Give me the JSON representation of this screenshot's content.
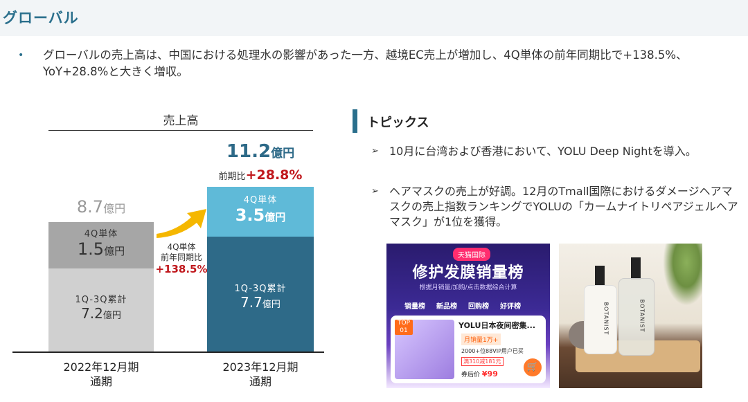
{
  "header": {
    "title": "グローバル"
  },
  "bullet": {
    "dot": "•",
    "text": "グローバルの売上高は、中国における処理水の影響があった一方、越境EC売上が増加し、4Q単体の前年同期比で+138.5%、YoY+28.8%と大きく増収。"
  },
  "chart": {
    "heading": "売上高",
    "fy2022": {
      "total_value": "8.7",
      "total_unit": "億円",
      "q4_label": "4Q単体",
      "q4_value": "1.5",
      "q4_unit": "億円",
      "q13_label": "1Q-3Q累計",
      "q13_value": "7.2",
      "q13_unit": "億円",
      "xlabel_line1": "2022年12月期",
      "xlabel_line2": "通期"
    },
    "fy2023": {
      "total_value": "11.2",
      "total_unit": "億円",
      "yoy_label": "前期比",
      "yoy_value": "+28.8%",
      "q4_label": "4Q単体",
      "q4_value": "3.5",
      "q4_unit": "億円",
      "q13_label": "1Q-3Q累計",
      "q13_value": "7.7",
      "q13_unit": "億円",
      "xlabel_line1": "2023年12月期",
      "xlabel_line2": "通期"
    },
    "growth": {
      "line1": "4Q単体",
      "line2": "前年同期比",
      "value": "+138.5%"
    },
    "colors": {
      "fy22_bottom": "#d0d0d0",
      "fy22_top": "#a6a6a6",
      "fy23_bottom": "#2e6a88",
      "fy23_top": "#5fbad8",
      "arrow": "#f5b700",
      "highlight_red": "#c0171c"
    }
  },
  "chart_data": {
    "type": "bar",
    "categories": [
      "2022年12月期 通期",
      "2023年12月期 通期"
    ],
    "series": [
      {
        "name": "1Q-3Q累計",
        "values": [
          7.2,
          7.7
        ]
      },
      {
        "name": "4Q単体",
        "values": [
          1.5,
          3.5
        ]
      }
    ],
    "totals": [
      8.7,
      11.2
    ],
    "title": "売上高",
    "unit": "億円"
  },
  "topics": {
    "title": "トピックス",
    "items": [
      {
        "marker": "➢",
        "text": "10月に台湾および香港において、YOLU Deep Nightを導入。"
      },
      {
        "marker": "➢",
        "text": "ヘアマスクの売上が好調。12月のTmall国際におけるダメージヘアマスクの売上指数ランキングでYOLUの「カームナイトリペアジェルヘアマスク」が1位を獲得。"
      }
    ]
  },
  "image1": {
    "badge": "天猫国际",
    "title": "修护发膜销量榜",
    "subtitle": "根据月销量/加购/点击数据综合计算",
    "tabs": [
      "销量榜",
      "新品榜",
      "回购榜",
      "好评榜"
    ],
    "rank": "TOP 01",
    "product_name": "YOLU日本夜间密集...",
    "sales": "月销量1万+",
    "vip": "2000+位88VIP用户已买",
    "coupon": "满310减181元",
    "price_label": "券后价",
    "price": "¥99",
    "cart_icon": "shopping-cart-icon"
  },
  "image2": {
    "logo": "BOTANIST"
  }
}
